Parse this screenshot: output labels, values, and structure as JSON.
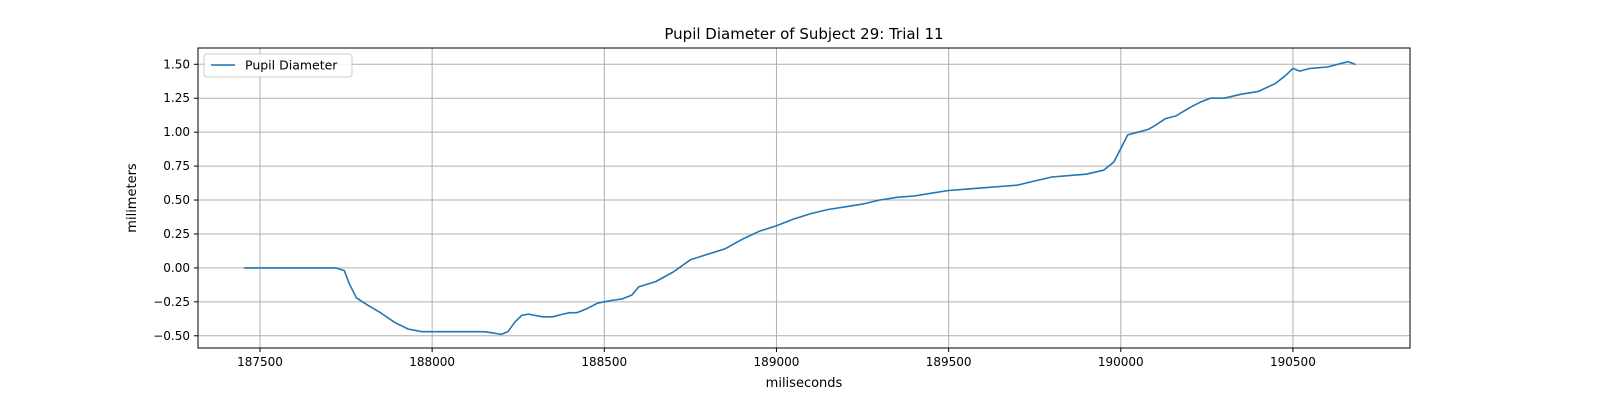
{
  "chart_data": {
    "type": "line",
    "title": "Pupil Diameter of Subject 29: Trial 11",
    "xlabel": "miliseconds",
    "ylabel": "milimeters",
    "xlim": [
      187320,
      190840
    ],
    "ylim": [
      -0.59,
      1.62
    ],
    "xticks": [
      187500,
      188000,
      188500,
      189000,
      189500,
      190000,
      190500
    ],
    "xtick_labels": [
      "187500",
      "188000",
      "188500",
      "189000",
      "189500",
      "190000",
      "190500"
    ],
    "yticks": [
      -0.5,
      -0.25,
      0.0,
      0.25,
      0.5,
      0.75,
      1.0,
      1.25,
      1.5
    ],
    "ytick_labels": [
      "−0.50",
      "−0.25",
      "0.00",
      "0.25",
      "0.50",
      "0.75",
      "1.00",
      "1.25",
      "1.50"
    ],
    "grid": true,
    "legend_position": "upper-left",
    "series": [
      {
        "name": "Pupil Diameter",
        "color": "#1f77b4",
        "x": [
          187455,
          187550,
          187650,
          187720,
          187745,
          187760,
          187780,
          187810,
          187850,
          187890,
          187930,
          187970,
          188000,
          188040,
          188080,
          188120,
          188150,
          188180,
          188200,
          188220,
          188240,
          188260,
          188280,
          188320,
          188350,
          188380,
          188400,
          188420,
          188450,
          188480,
          188500,
          188520,
          188550,
          188580,
          188600,
          188650,
          188700,
          188750,
          188800,
          188850,
          188900,
          188950,
          189000,
          189050,
          189100,
          189150,
          189200,
          189250,
          189300,
          189350,
          189400,
          189450,
          189500,
          189550,
          189600,
          189650,
          189700,
          189750,
          189800,
          189850,
          189900,
          189950,
          189980,
          190000,
          190020,
          190050,
          190080,
          190100,
          190130,
          190160,
          190200,
          190230,
          190260,
          190300,
          190350,
          190400,
          190450,
          190480,
          190500,
          190520,
          190550,
          190600,
          190630,
          190660,
          190680
        ],
        "y": [
          0.0,
          0.0,
          0.0,
          0.0,
          -0.02,
          -0.12,
          -0.22,
          -0.27,
          -0.33,
          -0.4,
          -0.45,
          -0.47,
          -0.47,
          -0.47,
          -0.47,
          -0.47,
          -0.47,
          -0.48,
          -0.49,
          -0.47,
          -0.4,
          -0.35,
          -0.34,
          -0.36,
          -0.36,
          -0.34,
          -0.33,
          -0.33,
          -0.3,
          -0.26,
          -0.25,
          -0.24,
          -0.23,
          -0.2,
          -0.14,
          -0.1,
          -0.03,
          0.06,
          0.1,
          0.14,
          0.21,
          0.27,
          0.31,
          0.36,
          0.4,
          0.43,
          0.45,
          0.47,
          0.5,
          0.52,
          0.53,
          0.55,
          0.57,
          0.58,
          0.59,
          0.6,
          0.61,
          0.64,
          0.67,
          0.68,
          0.69,
          0.72,
          0.78,
          0.88,
          0.98,
          1.0,
          1.02,
          1.05,
          1.1,
          1.12,
          1.18,
          1.22,
          1.25,
          1.25,
          1.28,
          1.3,
          1.36,
          1.42,
          1.47,
          1.45,
          1.47,
          1.48,
          1.5,
          1.52,
          1.5
        ]
      }
    ]
  }
}
